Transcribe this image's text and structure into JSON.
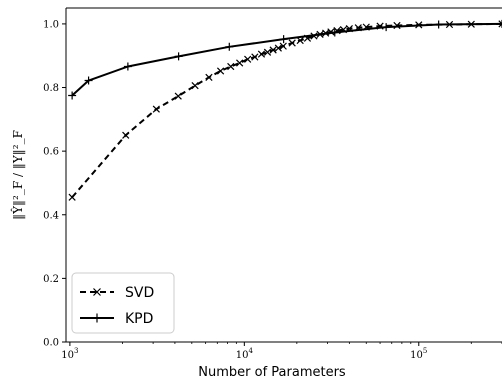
{
  "chart_data": {
    "type": "line",
    "xlabel": "Number of Parameters",
    "ylabel": "‖Ŷ‖²_F / ‖Y‖²_F",
    "x_scale": "log",
    "xlim": [
      950,
      300000
    ],
    "ylim": [
      0.0,
      1.05
    ],
    "x_ticks": [
      {
        "value": 1000,
        "base": "10",
        "exp": "3"
      },
      {
        "value": 10000,
        "base": "10",
        "exp": "4"
      },
      {
        "value": 100000,
        "base": "10",
        "exp": "5"
      }
    ],
    "y_ticks": [
      "0.0",
      "0.2",
      "0.4",
      "0.6",
      "0.8",
      "1.0"
    ],
    "legend": {
      "position": "bottom-left"
    },
    "series": [
      {
        "name": "SVD",
        "line_style": "dashed",
        "marker": "x",
        "color": "#000000",
        "x": [
          1030,
          2090,
          3130,
          4180,
          5220,
          6270,
          7310,
          8360,
          9400,
          10450,
          11490,
          12540,
          13580,
          14630,
          15670,
          16720,
          18810,
          20900,
          23000,
          25080,
          27170,
          29260,
          31350,
          34000,
          37000,
          40000,
          45000,
          50000,
          60000,
          75000,
          100000,
          150000,
          200000,
          300000
        ],
        "y": [
          0.455,
          0.65,
          0.732,
          0.773,
          0.806,
          0.832,
          0.852,
          0.866,
          0.877,
          0.889,
          0.896,
          0.905,
          0.911,
          0.918,
          0.924,
          0.93,
          0.94,
          0.948,
          0.955,
          0.962,
          0.967,
          0.971,
          0.975,
          0.979,
          0.982,
          0.985,
          0.988,
          0.99,
          0.993,
          0.995,
          0.997,
          0.998,
          0.999,
          1.0
        ]
      },
      {
        "name": "KPD",
        "line_style": "solid",
        "marker": "+",
        "color": "#000000",
        "x": [
          1030,
          1280,
          2150,
          4200,
          8200,
          16800,
          33000,
          65000,
          130000,
          300000
        ],
        "y": [
          0.775,
          0.822,
          0.866,
          0.898,
          0.928,
          0.952,
          0.973,
          0.99,
          0.998,
          1.0
        ]
      }
    ]
  }
}
